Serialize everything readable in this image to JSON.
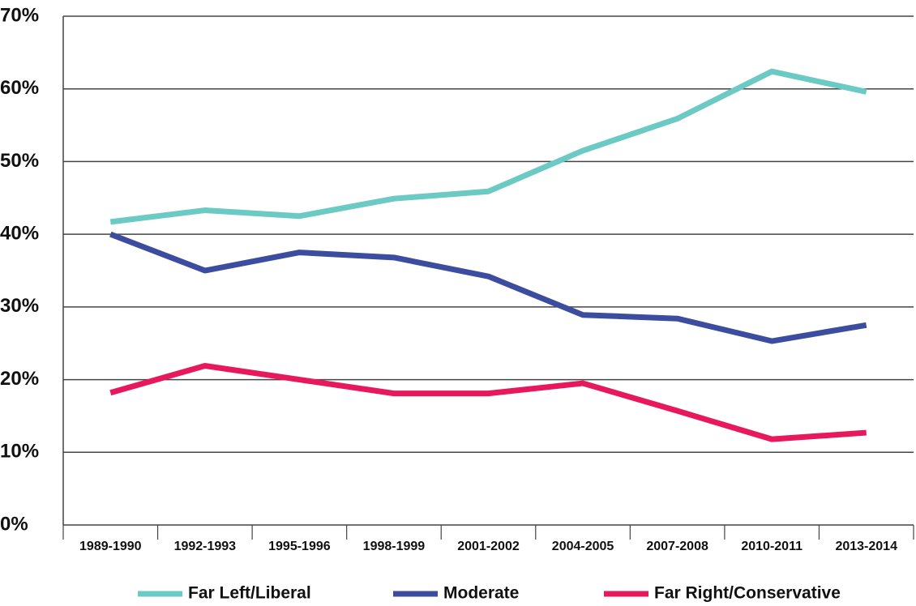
{
  "chart_data": {
    "type": "line",
    "categories": [
      "1989-1990",
      "1992-1993",
      "1995-1996",
      "1998-1999",
      "2001-2002",
      "2004-2005",
      "2007-2008",
      "2010-2011",
      "2013-2014"
    ],
    "series": [
      {
        "name": "Far Left/Liberal",
        "color": "#6ccac5",
        "values": [
          41.7,
          43.3,
          42.5,
          44.9,
          45.9,
          51.5,
          55.9,
          62.4,
          59.6
        ]
      },
      {
        "name": "Moderate",
        "color": "#3c4da0",
        "values": [
          40.0,
          35.0,
          37.5,
          36.8,
          34.2,
          28.9,
          28.4,
          25.3,
          27.5
        ]
      },
      {
        "name": "Far Right/Conservative",
        "color": "#e8185d",
        "values": [
          18.2,
          21.9,
          20.0,
          18.1,
          18.1,
          19.5,
          15.7,
          11.8,
          12.7
        ]
      }
    ],
    "ylim": [
      0,
      70
    ],
    "yticks": [
      {
        "value": 0,
        "label": "0%"
      },
      {
        "value": 10,
        "label": "10%"
      },
      {
        "value": 20,
        "label": "20%"
      },
      {
        "value": 30,
        "label": "30%"
      },
      {
        "value": 40,
        "label": "40%"
      },
      {
        "value": 50,
        "label": "50%"
      },
      {
        "value": 60,
        "label": "60%"
      },
      {
        "value": 70,
        "label": "70%"
      }
    ],
    "grid": true
  }
}
